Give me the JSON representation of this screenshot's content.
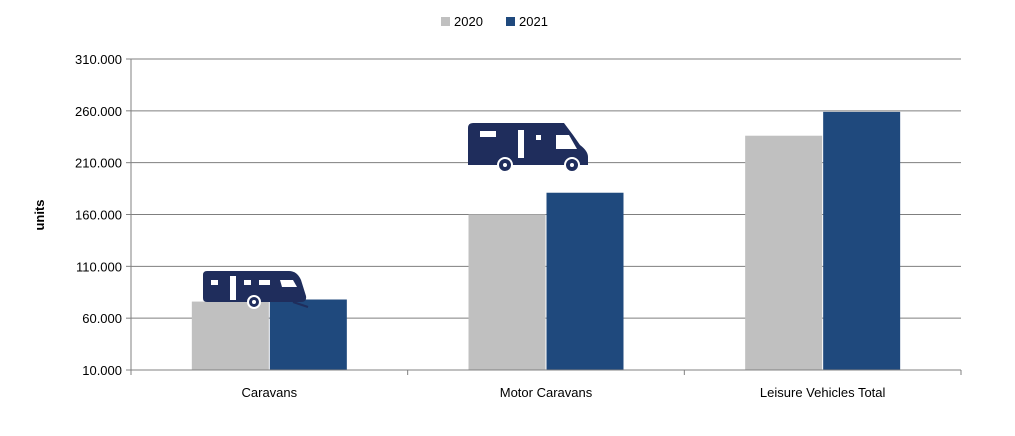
{
  "chart_data": {
    "type": "bar",
    "categories": [
      "Caravans",
      "Motor Caravans",
      "Leisure Vehicles Total"
    ],
    "series": [
      {
        "name": "2020",
        "values": [
          76000,
          160000,
          236000
        ],
        "color": "#c0c0c0"
      },
      {
        "name": "2021",
        "values": [
          78000,
          181000,
          259000
        ],
        "color": "#1f497d"
      }
    ],
    "ylabel": "units",
    "xlabel": "",
    "ylim": [
      10000,
      310000
    ],
    "yticks": [
      "10.000",
      "60.000",
      "110.000",
      "160.000",
      "210.000",
      "260.000",
      "310.000"
    ],
    "ytick_values": [
      10000,
      60000,
      110000,
      160000,
      210000,
      260000,
      310000
    ],
    "grid": true,
    "legend_position": "top-center",
    "icons": [
      "caravan-icon",
      "motorhome-icon"
    ],
    "icon_color": "#1f2d5c"
  }
}
